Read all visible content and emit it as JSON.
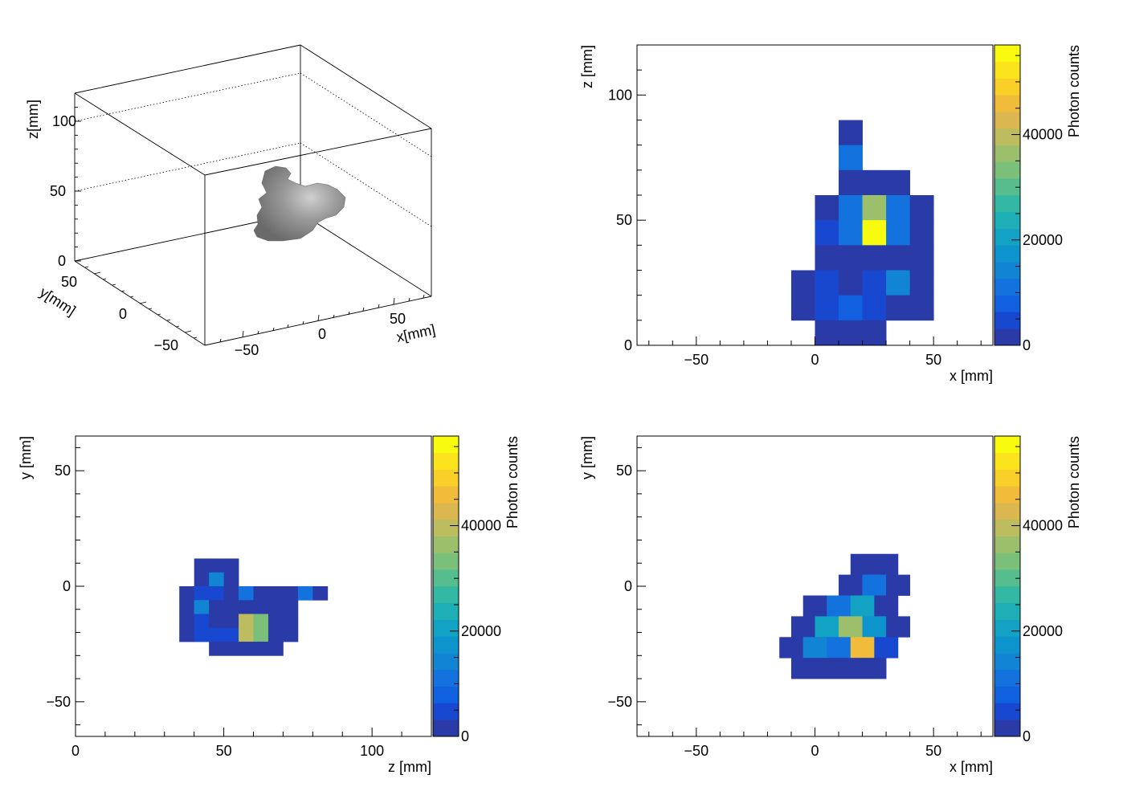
{
  "chart_data": [
    {
      "type": "scatter3d",
      "panel": "top-left",
      "xlabel": "x[mm]",
      "ylabel": "y[mm]",
      "zlabel": "z[mm]",
      "xlim": [
        -75,
        75
      ],
      "ylim": [
        -65,
        65
      ],
      "zlim": [
        0,
        120
      ],
      "xticks": [
        "−50",
        "0",
        "50"
      ],
      "yticks": [
        "−50",
        "0",
        "50"
      ],
      "zticks": [
        "0",
        "50",
        "100"
      ],
      "grid": true,
      "blob_color": "#7f7f7f",
      "blob_points": [
        {
          "x": 5,
          "y": 10,
          "z": 35
        },
        {
          "x": 15,
          "y": 0,
          "z": 45
        },
        {
          "x": 25,
          "y": -10,
          "z": 55
        },
        {
          "x": 20,
          "y": 5,
          "z": 65
        },
        {
          "x": 10,
          "y": 15,
          "z": 70
        },
        {
          "x": 30,
          "y": -5,
          "z": 50
        },
        {
          "x": 35,
          "y": -15,
          "z": 40
        }
      ]
    },
    {
      "type": "heatmap",
      "panel": "top-right",
      "xlabel": "x [mm]",
      "ylabel": "z [mm]",
      "zlabel": "Photon counts",
      "xlim": [
        -75,
        75
      ],
      "ylim": [
        0,
        120
      ],
      "zlim": [
        0,
        57000
      ],
      "xticks": [
        -50,
        0,
        50
      ],
      "yticks": [
        0,
        50,
        100
      ],
      "zticks": [
        0,
        20000,
        40000
      ],
      "bin_width": 10,
      "bin_height": 10,
      "cells": [
        {
          "x": 10,
          "y": 80,
          "v": 1500
        },
        {
          "x": 10,
          "y": 70,
          "v": 12000
        },
        {
          "x": 10,
          "y": 60,
          "v": 2000
        },
        {
          "x": 20,
          "y": 60,
          "v": 1500
        },
        {
          "x": 30,
          "y": 60,
          "v": 1500
        },
        {
          "x": 0,
          "y": 50,
          "v": 2500
        },
        {
          "x": 10,
          "y": 50,
          "v": 10000
        },
        {
          "x": 20,
          "y": 50,
          "v": 36000
        },
        {
          "x": 30,
          "y": 50,
          "v": 12000
        },
        {
          "x": 40,
          "y": 50,
          "v": 2000
        },
        {
          "x": 0,
          "y": 40,
          "v": 4500
        },
        {
          "x": 10,
          "y": 40,
          "v": 12000
        },
        {
          "x": 20,
          "y": 40,
          "v": 57000
        },
        {
          "x": 30,
          "y": 40,
          "v": 10000
        },
        {
          "x": 40,
          "y": 40,
          "v": 2000
        },
        {
          "x": 0,
          "y": 30,
          "v": 1500
        },
        {
          "x": 10,
          "y": 30,
          "v": 1500
        },
        {
          "x": 20,
          "y": 30,
          "v": 2000
        },
        {
          "x": 30,
          "y": 30,
          "v": 1500
        },
        {
          "x": 40,
          "y": 30,
          "v": 1500
        },
        {
          "x": -10,
          "y": 20,
          "v": 1500
        },
        {
          "x": 0,
          "y": 20,
          "v": 6000
        },
        {
          "x": 10,
          "y": 20,
          "v": 2500
        },
        {
          "x": 20,
          "y": 20,
          "v": 3500
        },
        {
          "x": 30,
          "y": 20,
          "v": 14000
        },
        {
          "x": 40,
          "y": 20,
          "v": 1500
        },
        {
          "x": -10,
          "y": 10,
          "v": 1500
        },
        {
          "x": 0,
          "y": 10,
          "v": 5500
        },
        {
          "x": 10,
          "y": 10,
          "v": 8000
        },
        {
          "x": 20,
          "y": 10,
          "v": 4000
        },
        {
          "x": 30,
          "y": 10,
          "v": 2000
        },
        {
          "x": 40,
          "y": 10,
          "v": 1500
        },
        {
          "x": 0,
          "y": 0,
          "v": 1500
        },
        {
          "x": 10,
          "y": 0,
          "v": 1500
        },
        {
          "x": 20,
          "y": 0,
          "v": 1500
        }
      ]
    },
    {
      "type": "heatmap",
      "panel": "bottom-left",
      "xlabel": "z [mm]",
      "ylabel": "y [mm]",
      "zlabel": "Photon counts",
      "xlim": [
        0,
        120
      ],
      "ylim": [
        -65,
        65
      ],
      "zlim": [
        0,
        57000
      ],
      "xticks": [
        0,
        50,
        100
      ],
      "yticks": [
        -50,
        0,
        50
      ],
      "zticks": [
        0,
        20000,
        40000
      ],
      "bin_width": 5,
      "bin_height": 6,
      "cells": [
        {
          "x": 40,
          "y": 6,
          "v": 1500
        },
        {
          "x": 45,
          "y": 6,
          "v": 1500
        },
        {
          "x": 50,
          "y": 6,
          "v": 1500
        },
        {
          "x": 40,
          "y": 0,
          "v": 1500
        },
        {
          "x": 45,
          "y": 0,
          "v": 14000
        },
        {
          "x": 50,
          "y": 0,
          "v": 1500
        },
        {
          "x": 35,
          "y": -6,
          "v": 1500
        },
        {
          "x": 40,
          "y": -6,
          "v": 4000
        },
        {
          "x": 45,
          "y": -6,
          "v": 6000
        },
        {
          "x": 50,
          "y": -6,
          "v": 1500
        },
        {
          "x": 55,
          "y": -6,
          "v": 10000
        },
        {
          "x": 60,
          "y": -6,
          "v": 1500
        },
        {
          "x": 65,
          "y": -6,
          "v": 1500
        },
        {
          "x": 70,
          "y": -6,
          "v": 1500
        },
        {
          "x": 75,
          "y": -6,
          "v": 10000
        },
        {
          "x": 80,
          "y": -6,
          "v": 2500
        },
        {
          "x": 35,
          "y": -12,
          "v": 1500
        },
        {
          "x": 40,
          "y": -12,
          "v": 15000
        },
        {
          "x": 45,
          "y": -12,
          "v": 1500
        },
        {
          "x": 50,
          "y": -12,
          "v": 1500
        },
        {
          "x": 55,
          "y": -12,
          "v": 1500
        },
        {
          "x": 60,
          "y": -12,
          "v": 1500
        },
        {
          "x": 65,
          "y": -12,
          "v": 1500
        },
        {
          "x": 70,
          "y": -12,
          "v": 1500
        },
        {
          "x": 35,
          "y": -18,
          "v": 1500
        },
        {
          "x": 40,
          "y": -18,
          "v": 4000
        },
        {
          "x": 45,
          "y": -18,
          "v": 1500
        },
        {
          "x": 50,
          "y": -18,
          "v": 1500
        },
        {
          "x": 55,
          "y": -18,
          "v": 38000
        },
        {
          "x": 60,
          "y": -18,
          "v": 33000
        },
        {
          "x": 65,
          "y": -18,
          "v": 1500
        },
        {
          "x": 70,
          "y": -18,
          "v": 1500
        },
        {
          "x": 35,
          "y": -24,
          "v": 1500
        },
        {
          "x": 40,
          "y": -24,
          "v": 6000
        },
        {
          "x": 45,
          "y": -24,
          "v": 6000
        },
        {
          "x": 50,
          "y": -24,
          "v": 3500
        },
        {
          "x": 55,
          "y": -24,
          "v": 38000
        },
        {
          "x": 60,
          "y": -24,
          "v": 33000
        },
        {
          "x": 65,
          "y": -24,
          "v": 1500
        },
        {
          "x": 70,
          "y": -24,
          "v": 1500
        },
        {
          "x": 45,
          "y": -30,
          "v": 1500
        },
        {
          "x": 50,
          "y": -30,
          "v": 1500
        },
        {
          "x": 55,
          "y": -30,
          "v": 1500
        },
        {
          "x": 60,
          "y": -30,
          "v": 1500
        },
        {
          "x": 65,
          "y": -30,
          "v": 1500
        }
      ]
    },
    {
      "type": "heatmap",
      "panel": "bottom-right",
      "xlabel": "x [mm]",
      "ylabel": "y [mm]",
      "zlabel": "Photon counts",
      "xlim": [
        -75,
        75
      ],
      "ylim": [
        -65,
        65
      ],
      "zlim": [
        0,
        57000
      ],
      "xticks": [
        -50,
        0,
        50
      ],
      "yticks": [
        -50,
        0,
        50
      ],
      "zticks": [
        0,
        20000,
        40000
      ],
      "bin_width": 5,
      "bin_height": 9,
      "cells": [
        {
          "x": 15,
          "y": 5,
          "v": 1500
        },
        {
          "x": 20,
          "y": 5,
          "v": 1500
        },
        {
          "x": 25,
          "y": 5,
          "v": 1500
        },
        {
          "x": 30,
          "y": 5,
          "v": 1500
        },
        {
          "x": 10,
          "y": -4,
          "v": 1500
        },
        {
          "x": 15,
          "y": -4,
          "v": 1500
        },
        {
          "x": 20,
          "y": -4,
          "v": 12000
        },
        {
          "x": 25,
          "y": -4,
          "v": 12000
        },
        {
          "x": 30,
          "y": -4,
          "v": 1500
        },
        {
          "x": 35,
          "y": -4,
          "v": 1500
        },
        {
          "x": -5,
          "y": -13,
          "v": 1500
        },
        {
          "x": 0,
          "y": -13,
          "v": 1500
        },
        {
          "x": 5,
          "y": -13,
          "v": 12000
        },
        {
          "x": 10,
          "y": -13,
          "v": 12000
        },
        {
          "x": 15,
          "y": -13,
          "v": 22000
        },
        {
          "x": 20,
          "y": -13,
          "v": 22000
        },
        {
          "x": 25,
          "y": -13,
          "v": 1500
        },
        {
          "x": 30,
          "y": -13,
          "v": 1500
        },
        {
          "x": -10,
          "y": -22,
          "v": 1500
        },
        {
          "x": -5,
          "y": -22,
          "v": 1500
        },
        {
          "x": 0,
          "y": -22,
          "v": 22000
        },
        {
          "x": 5,
          "y": -22,
          "v": 22000
        },
        {
          "x": 10,
          "y": -22,
          "v": 36000
        },
        {
          "x": 15,
          "y": -22,
          "v": 36000
        },
        {
          "x": 20,
          "y": -22,
          "v": 17000
        },
        {
          "x": 25,
          "y": -22,
          "v": 17000
        },
        {
          "x": 30,
          "y": -22,
          "v": 1500
        },
        {
          "x": 35,
          "y": -22,
          "v": 1500
        },
        {
          "x": -15,
          "y": -31,
          "v": 1500
        },
        {
          "x": -10,
          "y": -31,
          "v": 1500
        },
        {
          "x": -5,
          "y": -31,
          "v": 14000
        },
        {
          "x": 0,
          "y": -31,
          "v": 14000
        },
        {
          "x": 5,
          "y": -31,
          "v": 12000
        },
        {
          "x": 10,
          "y": -31,
          "v": 12000
        },
        {
          "x": 15,
          "y": -31,
          "v": 47000
        },
        {
          "x": 20,
          "y": -31,
          "v": 47000
        },
        {
          "x": 25,
          "y": -31,
          "v": 6000
        },
        {
          "x": 30,
          "y": -31,
          "v": 6000
        },
        {
          "x": -10,
          "y": -40,
          "v": 1500
        },
        {
          "x": -5,
          "y": -40,
          "v": 1500
        },
        {
          "x": 0,
          "y": -40,
          "v": 1500
        },
        {
          "x": 5,
          "y": -40,
          "v": 1500
        },
        {
          "x": 10,
          "y": -40,
          "v": 1500
        },
        {
          "x": 15,
          "y": -40,
          "v": 1500
        },
        {
          "x": 20,
          "y": -40,
          "v": 1500
        },
        {
          "x": 25,
          "y": -40,
          "v": 1500
        }
      ]
    }
  ],
  "palette": [
    "#2a3ba8",
    "#1848d0",
    "#1060df",
    "#1472de",
    "#1284d4",
    "#0e94cc",
    "#12a2c3",
    "#1eafb6",
    "#33b8a4",
    "#55bd8e",
    "#7abf7a",
    "#9cbf6c",
    "#bdbc5f",
    "#dbb84f",
    "#f0bc3a",
    "#f9cf28",
    "#fbe41c",
    "#f9fb0e"
  ]
}
